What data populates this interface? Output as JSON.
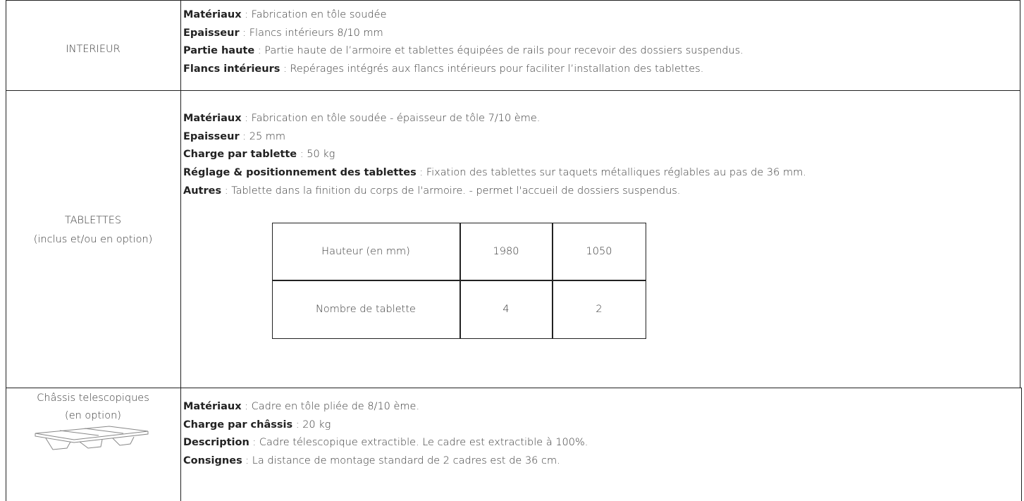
{
  "rows": [
    {
      "label": [
        "INTERIEUR"
      ],
      "lines": [
        {
          "term": "Matériaux",
          "text": " : Fabrication en tôle soudée"
        },
        {
          "term": "Epaisseur",
          "text": " : Flancs intérieurs 8/10 mm"
        },
        {
          "term": "Partie haute",
          "text": " : Partie haute de l’armoire et tablettes équipées de rails pour recevoir des dossiers suspendus."
        },
        {
          "term": "Flancs intérieurs",
          "text": " : Repérages intégrés aux flancs intérieurs pour faciliter l’installation des tablettes."
        }
      ]
    },
    {
      "label": [
        "TABLETTES",
        "(inclus et/ou en option)"
      ],
      "lines": [
        {
          "term": "Matériaux",
          "text": " : Fabrication en tôle soudée - épaisseur de tôle 7/10 ème."
        },
        {
          "term": "Epaisseur",
          "text": " : 25 mm"
        },
        {
          "term": "Charge par tablette",
          "text": " : 50 kg"
        },
        {
          "term": "Réglage & positionnement des tablettes",
          "text": " : Fixation des tablettes sur taquets métalliques réglables au pas de 36 mm."
        },
        {
          "term": "Autres",
          "text": " : Tablette dans la finition du corps de l'armoire. - permet l'accueil de dossiers suspendus."
        }
      ],
      "table": [
        [
          "Hauteur (en mm)",
          "1980",
          "1050"
        ],
        [
          "Nombre de tablette",
          "4",
          "2"
        ]
      ]
    },
    {
      "label": [
        "Châssis telescopiques",
        "(en option)"
      ],
      "lines": [
        {
          "term": "Matériaux",
          "text": " : Cadre en tôle pliée de 8/10 ème."
        },
        {
          "term": "Charge par châssis",
          "text": " : 20 kg"
        },
        {
          "term": "Description",
          "text": " : Cadre télescopique extractible. Le cadre est extractible à 100%."
        },
        {
          "term": "Consignes",
          "text": " : La distance de montage standard de 2 cadres est de 36 cm."
        }
      ]
    }
  ]
}
